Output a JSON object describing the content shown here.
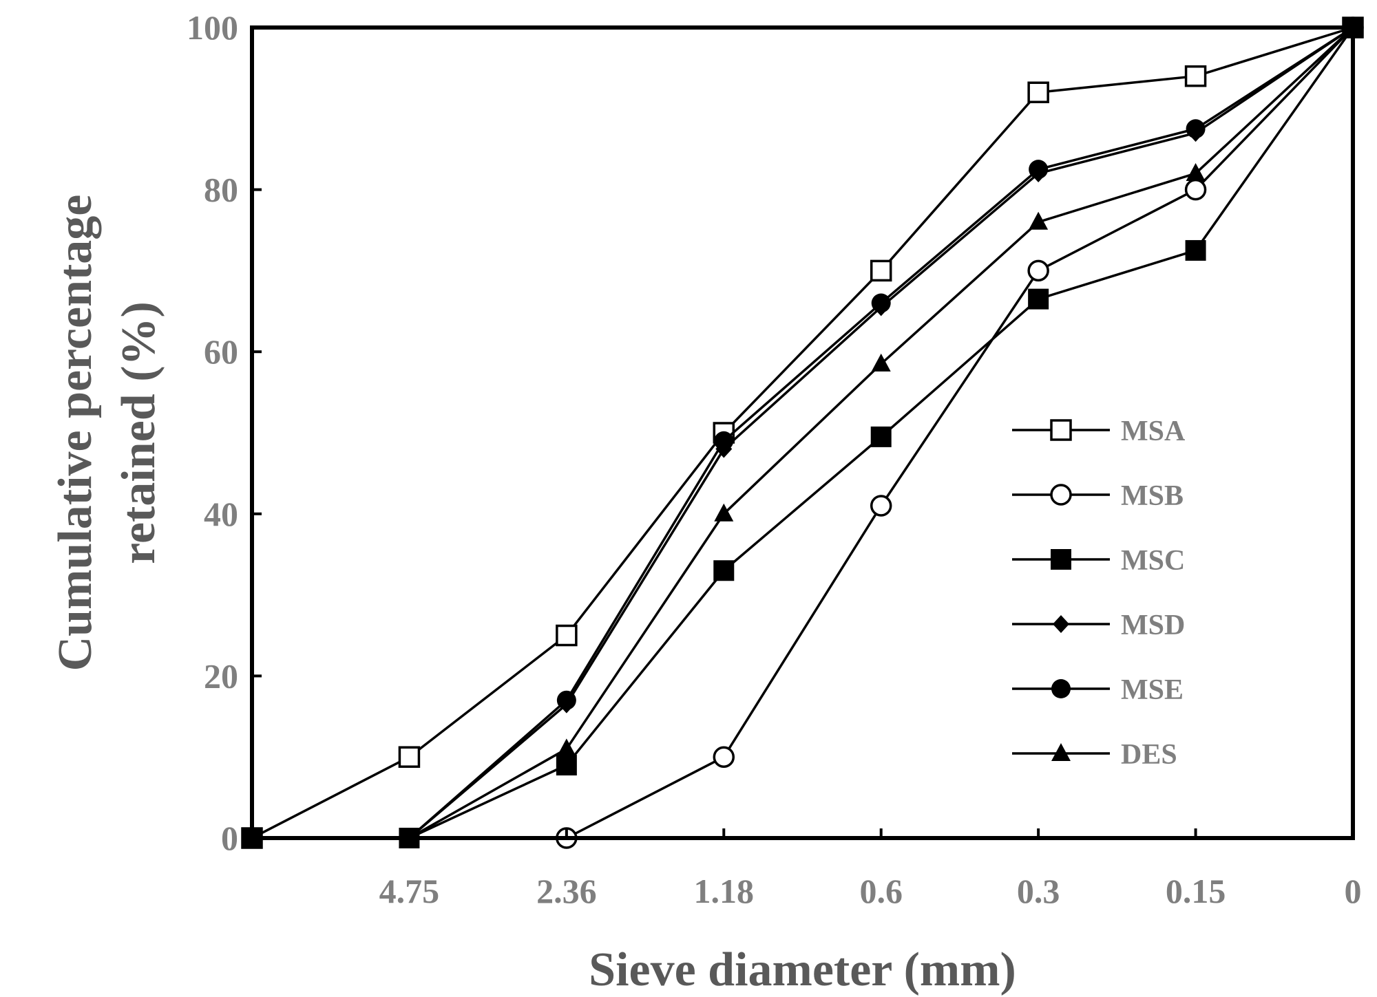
{
  "chart_data": {
    "type": "line",
    "xlabel": "Sieve diameter (mm)",
    "ylabel_lines": [
      "Cumulative percentage",
      "retained (%)"
    ],
    "x_categories": [
      "",
      "4.75",
      "2.36",
      "1.18",
      "0.6",
      "0.3",
      "0.15",
      "0"
    ],
    "ylim": [
      0,
      100
    ],
    "yticks": [
      "0",
      "20",
      "40",
      "60",
      "80",
      "100"
    ],
    "grid": false,
    "legend_position": "right",
    "series": [
      {
        "name": "MSA",
        "marker": "square-open",
        "points": [
          [
            0,
            0
          ],
          [
            1,
            10
          ],
          [
            2,
            25
          ],
          [
            3,
            50
          ],
          [
            4,
            70
          ],
          [
            5,
            92
          ],
          [
            6,
            94
          ],
          [
            7,
            100
          ]
        ]
      },
      {
        "name": "MSB",
        "marker": "circle-open",
        "points": [
          [
            2,
            0
          ],
          [
            3,
            10
          ],
          [
            4,
            41
          ],
          [
            5,
            70
          ],
          [
            6,
            80
          ],
          [
            7,
            100
          ]
        ]
      },
      {
        "name": "MSC",
        "marker": "square-filled",
        "points": [
          [
            0,
            0
          ],
          [
            1,
            0
          ],
          [
            2,
            9
          ],
          [
            3,
            33
          ],
          [
            4,
            49.5
          ],
          [
            5,
            66.5
          ],
          [
            6,
            72.5
          ],
          [
            7,
            100
          ]
        ]
      },
      {
        "name": "MSD",
        "marker": "diamond-filled",
        "points": [
          [
            0,
            0
          ],
          [
            1,
            0
          ],
          [
            2,
            16.5
          ],
          [
            3,
            48
          ],
          [
            4,
            65.5
          ],
          [
            5,
            82
          ],
          [
            6,
            87
          ],
          [
            7,
            100
          ]
        ]
      },
      {
        "name": "MSE",
        "marker": "circle-filled",
        "points": [
          [
            0,
            0
          ],
          [
            1,
            0
          ],
          [
            2,
            17
          ],
          [
            3,
            49
          ],
          [
            4,
            66
          ],
          [
            5,
            82.5
          ],
          [
            6,
            87.5
          ],
          [
            7,
            100
          ]
        ]
      },
      {
        "name": "DES",
        "marker": "triangle-filled",
        "points": [
          [
            0,
            0
          ],
          [
            1,
            0
          ],
          [
            2,
            11
          ],
          [
            3,
            40
          ],
          [
            4,
            58.5
          ],
          [
            5,
            76
          ],
          [
            6,
            82
          ],
          [
            7,
            100
          ]
        ]
      }
    ]
  }
}
